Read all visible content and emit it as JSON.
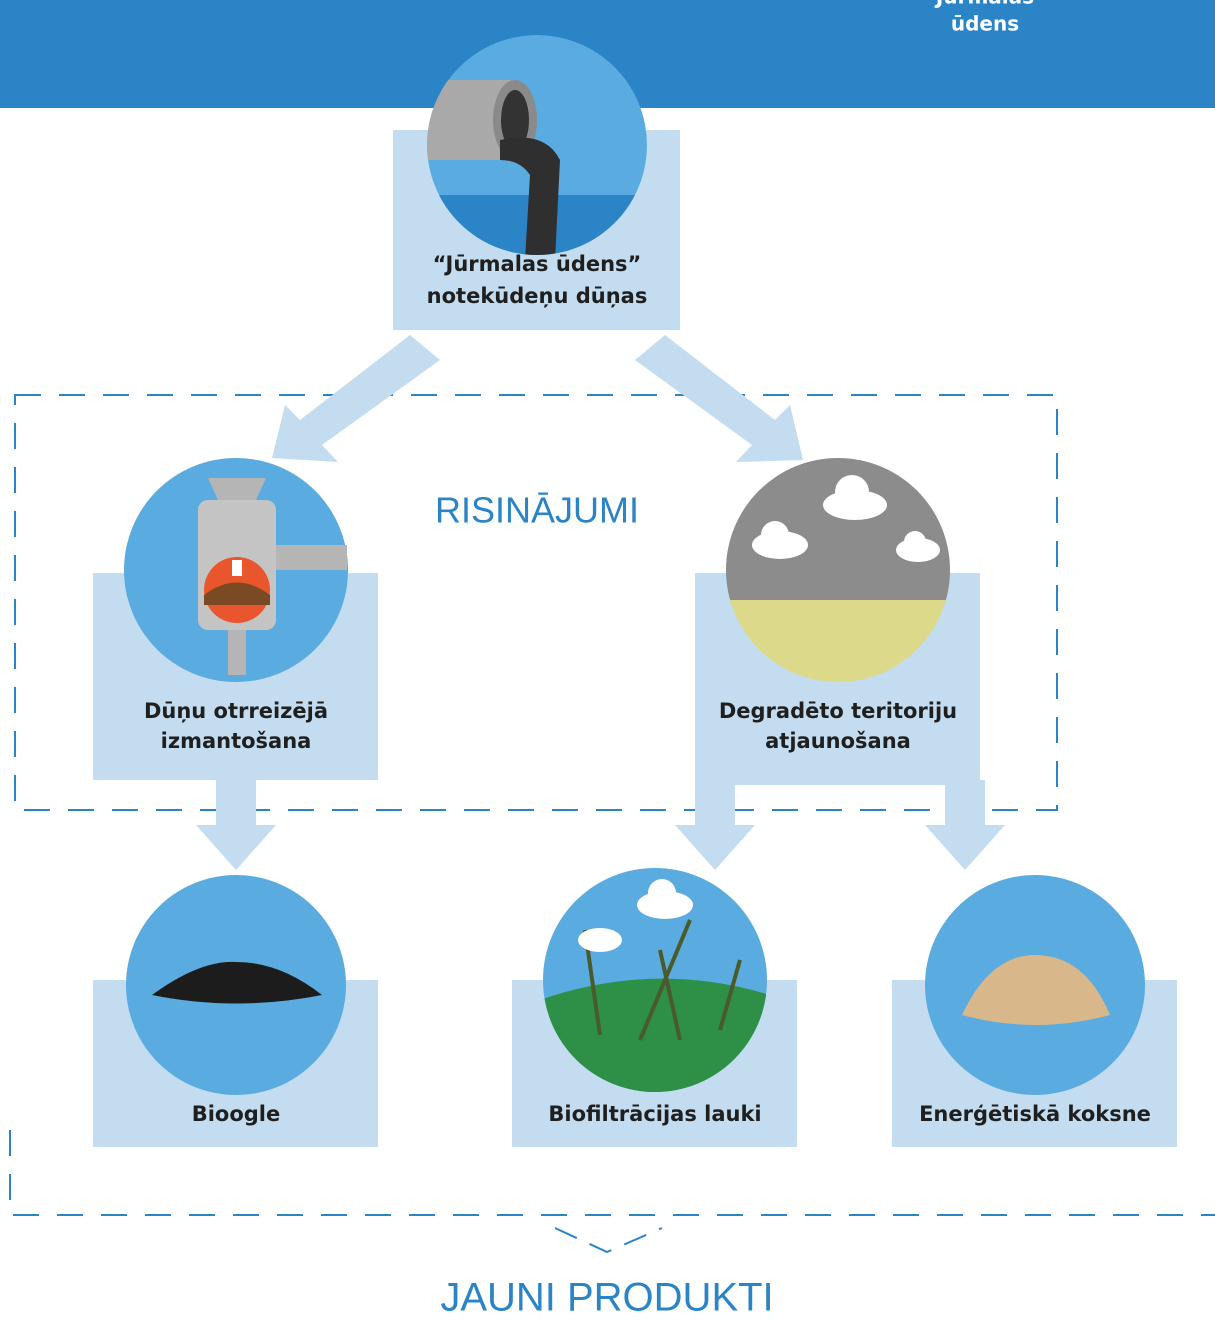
{
  "header": {
    "logo": [
      "Jūrmalas",
      "ūdens"
    ]
  },
  "nodes": [
    {
      "label": [
        "“Jūrmalas ūdens”",
        "notekūdeņu dūņas"
      ]
    },
    {
      "label": [
        "Dūņu otrreizējā",
        "izmantošana"
      ]
    },
    {
      "label": [
        "Degradēto teritoriju",
        "atjaunošana"
      ]
    },
    {
      "label": [
        "Bioogle"
      ]
    },
    {
      "label": [
        "Biofiltrācijas lauki"
      ]
    },
    {
      "label": [
        "Enerģētiskā koksne"
      ]
    }
  ],
  "groups": {
    "solutions": "RISINĀJUMI",
    "products": "JAUNI PRODUKTI"
  }
}
